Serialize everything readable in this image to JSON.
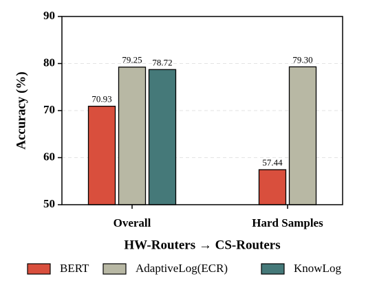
{
  "chart_data": {
    "type": "bar",
    "y_label": "Accuracy (%)",
    "x_label": "HW-Routers → CS-Routers",
    "categories": [
      "Overall",
      "Hard Samples"
    ],
    "series": [
      {
        "name": "BERT",
        "color": "#d94f3d",
        "values": [
          70.93,
          57.44
        ],
        "value_labels": [
          "70.93",
          "57.44"
        ]
      },
      {
        "name": "AdaptiveLog(ECR)",
        "color": "#b8b8a4",
        "values": [
          79.25,
          79.3
        ],
        "value_labels": [
          "79.25",
          "79.30"
        ]
      },
      {
        "name": "KnowLog",
        "color": "#457979",
        "values": [
          78.72,
          null
        ],
        "value_labels": [
          "78.72",
          null
        ]
      }
    ],
    "ylim": [
      50,
      90
    ],
    "yticks": [
      50,
      60,
      70,
      80,
      90
    ],
    "grid": true,
    "legend": "bottom"
  }
}
